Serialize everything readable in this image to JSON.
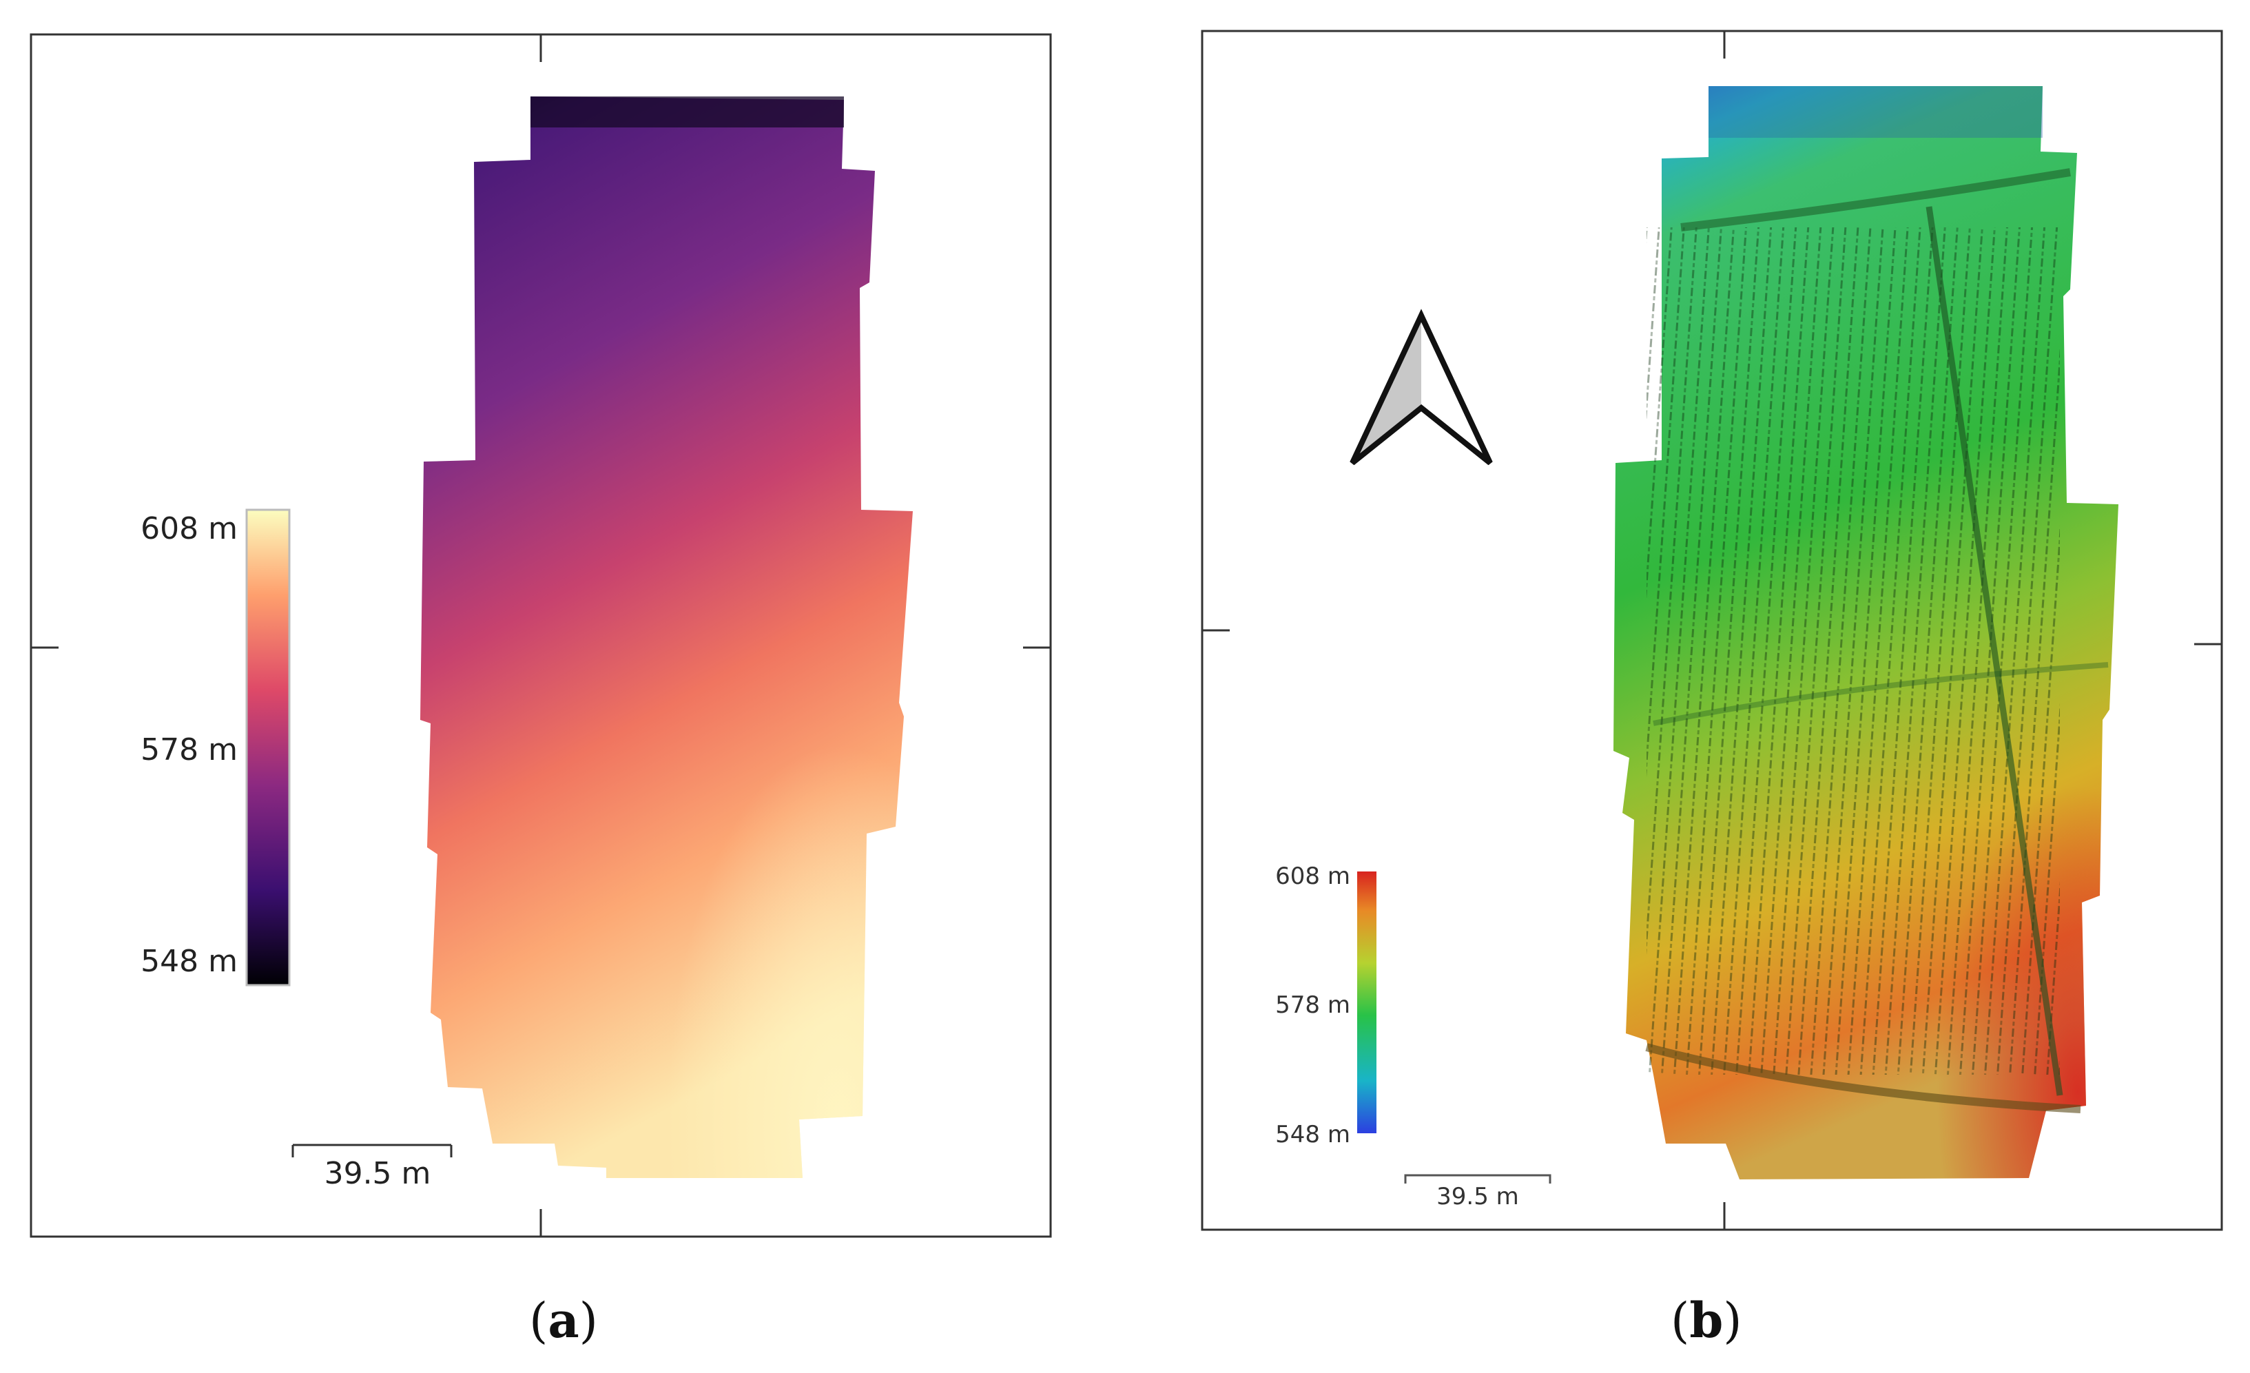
{
  "panel_a": {
    "legend": {
      "max_label": "608 m",
      "mid_label": "578 m",
      "min_label": "548 m",
      "colors": [
        "#000004",
        "#3b0f70",
        "#8c2981",
        "#de4968",
        "#fe9f6d",
        "#fcfdbf"
      ]
    },
    "scale_bar_label": "39.5 m",
    "caption_letter": "a"
  },
  "panel_b": {
    "legend": {
      "max_label": "608 m",
      "mid_label": "578 m",
      "min_label": "548 m",
      "colors": [
        "#2c3fe0",
        "#19b4c8",
        "#28c248",
        "#b6d230",
        "#e88a26",
        "#d8231f"
      ]
    },
    "scale_bar_label": "39.5 m",
    "north_arrow_icon": "north-arrow-icon",
    "caption_letter": "b"
  }
}
